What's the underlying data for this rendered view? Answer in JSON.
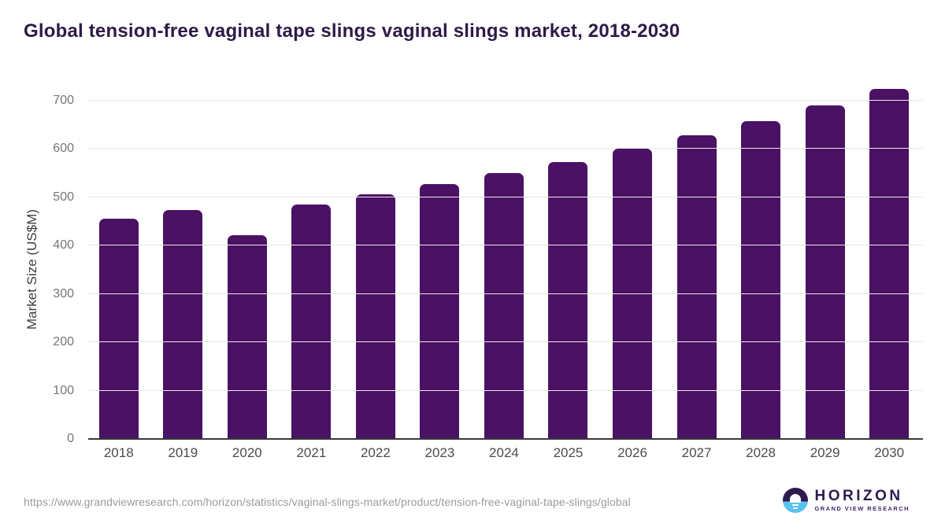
{
  "page_title": "Global tension-free vaginal tape slings vaginal slings market, 2018-2030",
  "chart_data": {
    "type": "bar",
    "title": "Global tension-free vaginal tape slings vaginal slings market, 2018-2030",
    "categories": [
      "2018",
      "2019",
      "2020",
      "2021",
      "2022",
      "2023",
      "2024",
      "2025",
      "2026",
      "2027",
      "2028",
      "2029",
      "2030"
    ],
    "values": [
      455,
      473,
      421,
      484,
      506,
      527,
      550,
      573,
      601,
      628,
      658,
      690,
      724
    ],
    "xlabel": "",
    "ylabel": "Market Size (US$M)",
    "yticks": [
      0,
      100,
      200,
      300,
      400,
      500,
      600,
      700
    ],
    "ylim": [
      0,
      745
    ],
    "grid": true,
    "legend": "none",
    "bar_color": "#4a1164"
  },
  "footer": {
    "source_url": "https://www.grandviewresearch.com/horizon/statistics/vaginal-slings-market/product/tension-free-vaginal-tape-slings/global",
    "logo": {
      "icon": "horizon-bulb-icon",
      "name": "HORIZON",
      "subtitle": "GRAND VIEW RESEARCH"
    }
  },
  "colors": {
    "title": "#2e1a47",
    "bar": "#4a1164",
    "gridline": "#e9e9e9",
    "axis_line": "#3a3a3a",
    "ytick_label": "#757575",
    "xtick_label": "#4b4b4b",
    "source_url": "#9b9b9b",
    "logo_purple": "#2d1b4e",
    "logo_blue": "#59c2f0"
  }
}
